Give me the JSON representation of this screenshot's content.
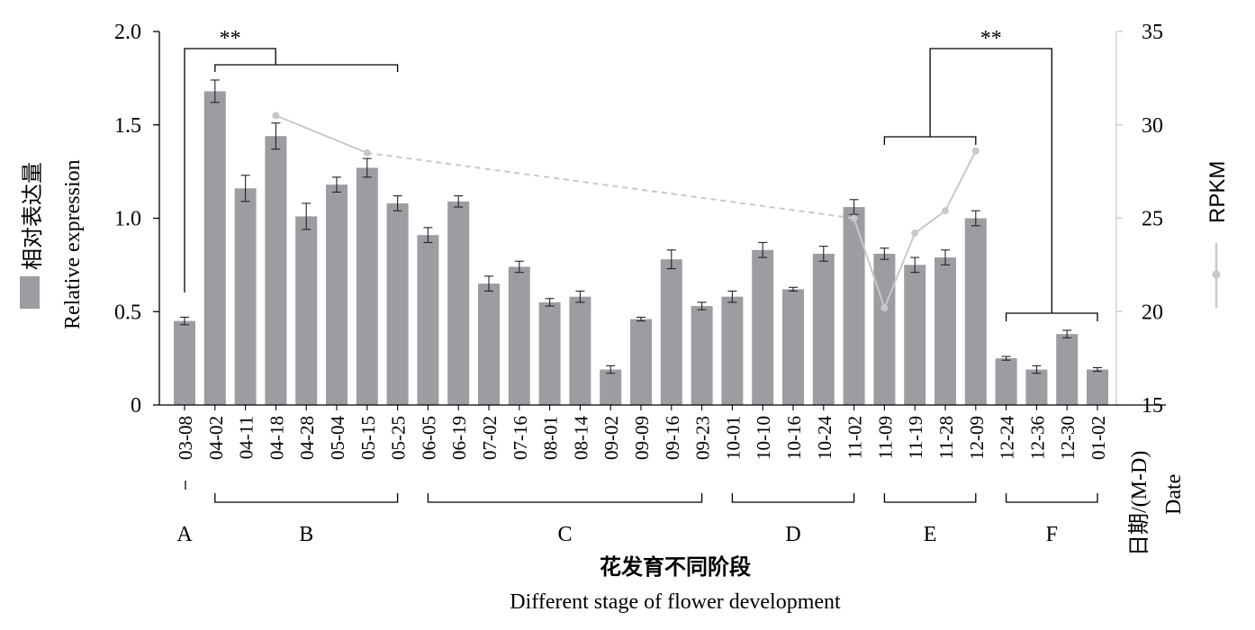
{
  "chart_data": {
    "type": "bar",
    "categories": [
      "03-08",
      "04-02",
      "04-11",
      "04-18",
      "04-28",
      "05-04",
      "05-15",
      "05-25",
      "06-05",
      "06-19",
      "07-02",
      "07-16",
      "08-01",
      "08-14",
      "09-02",
      "09-09",
      "09-16",
      "09-23",
      "10-01",
      "10-10",
      "10-16",
      "10-24",
      "11-02",
      "11-09",
      "11-19",
      "11-28",
      "12-09",
      "12-24",
      "12-36",
      "12-30",
      "01-02"
    ],
    "series": [
      {
        "name": "Relative expression",
        "axis": "left",
        "values": [
          0.45,
          1.68,
          1.16,
          1.44,
          1.01,
          1.18,
          1.27,
          1.08,
          0.91,
          1.09,
          0.65,
          0.74,
          0.55,
          0.58,
          0.19,
          0.46,
          0.78,
          0.53,
          0.58,
          0.83,
          0.62,
          0.81,
          1.06,
          0.81,
          0.75,
          0.79,
          1.0,
          0.25,
          0.19,
          0.38,
          0.19
        ],
        "errors": [
          0.02,
          0.06,
          0.07,
          0.07,
          0.07,
          0.04,
          0.05,
          0.04,
          0.04,
          0.03,
          0.04,
          0.03,
          0.02,
          0.03,
          0.02,
          0.01,
          0.05,
          0.02,
          0.03,
          0.04,
          0.01,
          0.04,
          0.04,
          0.03,
          0.04,
          0.04,
          0.04,
          0.01,
          0.02,
          0.02,
          0.01
        ],
        "color": "#9d9ca2"
      },
      {
        "name": "RPKM",
        "axis": "right",
        "points": [
          {
            "category": "04-18",
            "value": 30.5
          },
          {
            "category": "05-15",
            "value": 28.5
          },
          {
            "category": "11-02",
            "value": 25.0
          },
          {
            "category": "11-09",
            "value": 20.2
          },
          {
            "category": "11-19",
            "value": 24.2
          },
          {
            "category": "11-28",
            "value": 25.4
          },
          {
            "category": "12-09",
            "value": 28.6
          }
        ],
        "dashed_segments": [
          [
            1,
            2
          ]
        ],
        "color": "#c8c8c8"
      }
    ],
    "y_left": {
      "lim": [
        0,
        2.0
      ],
      "ticks": [
        "0",
        "0.5",
        "1.0",
        "1.5",
        "2.0"
      ],
      "label_cn": "相对表达量",
      "label_en": "Relative expression"
    },
    "y_right": {
      "lim": [
        15,
        35
      ],
      "ticks": [
        "15",
        "20",
        "25",
        "30",
        "35"
      ],
      "label": "RPKM"
    },
    "x_label_cn": "花发育不同阶段",
    "x_label_en": "Different stage of flower development",
    "x_unit_cn": "日期/(M-D)",
    "x_unit_en": "Date",
    "stages": [
      {
        "label": "A",
        "from": 0,
        "to": 0
      },
      {
        "label": "B",
        "from": 1,
        "to": 7
      },
      {
        "label": "C",
        "from": 8,
        "to": 17
      },
      {
        "label": "D",
        "from": 18,
        "to": 22
      },
      {
        "label": "E",
        "from": 23,
        "to": 26
      },
      {
        "label": "F",
        "from": 27,
        "to": 30
      }
    ],
    "significance": [
      {
        "label": "**",
        "groups": [
          [
            0,
            0
          ],
          [
            1,
            7
          ]
        ]
      },
      {
        "label": "**",
        "groups": [
          [
            23,
            26
          ],
          [
            27,
            30
          ]
        ]
      }
    ],
    "grid": false,
    "legend_placement": "axis-labels"
  }
}
